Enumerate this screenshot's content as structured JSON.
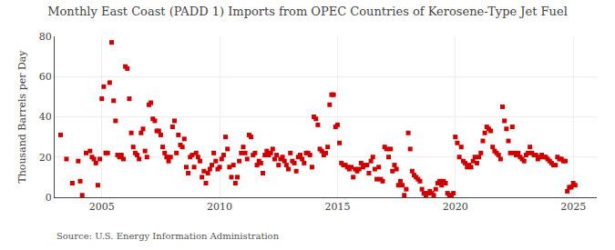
{
  "chart_data": {
    "type": "scatter",
    "title": "Monthly East Coast (PADD 1) Imports from OPEC Countries of Kerosene-Type Jet Fuel",
    "ylabel": "Thousand Barrels per Day",
    "annotations": [
      "Source: U.S. Energy Information Administration"
    ],
    "color": "#cc0000",
    "marker": "square",
    "grid": true,
    "ylim": [
      0,
      80
    ],
    "yticks": [
      0,
      20,
      40,
      60,
      80
    ],
    "xlim": [
      2003.0,
      2026.0
    ],
    "xticks": [
      2005,
      2010,
      2015,
      2020,
      2025
    ],
    "x": [
      2003.25,
      2003.5,
      2003.75,
      2004.0,
      2004.083,
      2004.167,
      2004.333,
      2004.5,
      2004.583,
      2004.667,
      2004.75,
      2004.833,
      2004.917,
      2005.0,
      2005.083,
      2005.167,
      2005.25,
      2005.333,
      2005.417,
      2005.5,
      2005.583,
      2005.667,
      2005.75,
      2005.833,
      2005.917,
      2006.0,
      2006.083,
      2006.167,
      2006.25,
      2006.333,
      2006.417,
      2006.5,
      2006.583,
      2006.667,
      2006.75,
      2006.833,
      2006.917,
      2007.0,
      2007.083,
      2007.167,
      2007.25,
      2007.333,
      2007.417,
      2007.5,
      2007.583,
      2007.667,
      2007.75,
      2007.833,
      2007.917,
      2008.0,
      2008.083,
      2008.167,
      2008.25,
      2008.333,
      2008.417,
      2008.5,
      2008.583,
      2008.667,
      2008.75,
      2008.833,
      2008.917,
      2009.0,
      2009.083,
      2009.167,
      2009.25,
      2009.333,
      2009.417,
      2009.5,
      2009.583,
      2009.667,
      2009.75,
      2009.833,
      2009.917,
      2010.0,
      2010.083,
      2010.167,
      2010.25,
      2010.333,
      2010.417,
      2010.5,
      2010.583,
      2010.667,
      2010.75,
      2010.833,
      2010.917,
      2011.0,
      2011.083,
      2011.167,
      2011.25,
      2011.333,
      2011.417,
      2011.5,
      2011.583,
      2011.667,
      2011.75,
      2011.833,
      2011.917,
      2012.0,
      2012.083,
      2012.167,
      2012.25,
      2012.333,
      2012.417,
      2012.5,
      2012.583,
      2012.667,
      2012.75,
      2012.833,
      2012.917,
      2013.0,
      2013.083,
      2013.167,
      2013.25,
      2013.333,
      2013.417,
      2013.5,
      2013.583,
      2013.667,
      2013.75,
      2013.833,
      2013.917,
      2014.0,
      2014.083,
      2014.167,
      2014.25,
      2014.333,
      2014.417,
      2014.5,
      2014.583,
      2014.667,
      2014.75,
      2014.833,
      2014.917,
      2015.0,
      2015.083,
      2015.167,
      2015.25,
      2015.333,
      2015.417,
      2015.5,
      2015.583,
      2015.667,
      2015.75,
      2015.833,
      2015.917,
      2016.0,
      2016.083,
      2016.167,
      2016.25,
      2016.333,
      2016.417,
      2016.5,
      2016.583,
      2016.667,
      2016.75,
      2016.833,
      2016.917,
      2017.0,
      2017.083,
      2017.167,
      2017.25,
      2017.333,
      2017.417,
      2017.5,
      2017.583,
      2017.667,
      2017.75,
      2017.833,
      2017.917,
      2018.0,
      2018.083,
      2018.167,
      2018.25,
      2018.333,
      2018.417,
      2018.5,
      2018.583,
      2018.667,
      2018.75,
      2018.833,
      2018.917,
      2019.0,
      2019.083,
      2019.167,
      2019.25,
      2019.333,
      2019.417,
      2019.5,
      2019.583,
      2019.667,
      2019.75,
      2019.833,
      2019.917,
      2020.0,
      2020.083,
      2020.167,
      2020.25,
      2020.333,
      2020.417,
      2020.5,
      2020.583,
      2020.667,
      2020.75,
      2020.833,
      2020.917,
      2021.0,
      2021.083,
      2021.167,
      2021.25,
      2021.333,
      2021.417,
      2021.5,
      2021.583,
      2021.667,
      2021.75,
      2021.833,
      2021.917,
      2022.0,
      2022.083,
      2022.167,
      2022.25,
      2022.333,
      2022.417,
      2022.5,
      2022.583,
      2022.667,
      2022.75,
      2022.833,
      2022.917,
      2023.0,
      2023.083,
      2023.167,
      2023.25,
      2023.333,
      2023.417,
      2023.5,
      2023.583,
      2023.667,
      2023.75,
      2023.833,
      2023.917,
      2024.0,
      2024.083,
      2024.167,
      2024.25,
      2024.333,
      2024.417,
      2024.5,
      2024.583,
      2024.667,
      2024.75,
      2024.833,
      2024.917,
      2025.0,
      2025.083
    ],
    "values": [
      31,
      19,
      7,
      18,
      8,
      1,
      22,
      23,
      20,
      19,
      17,
      6,
      19,
      49,
      55,
      22,
      22,
      57,
      77,
      48,
      38,
      21,
      20,
      21,
      19,
      65,
      64,
      49,
      32,
      25,
      22,
      21,
      19,
      32,
      34,
      23,
      20,
      46,
      47,
      39,
      38,
      33,
      33,
      31,
      25,
      22,
      20,
      18,
      20,
      35,
      38,
      22,
      31,
      26,
      25,
      29,
      15,
      12,
      20,
      21,
      15,
      22,
      20,
      18,
      10,
      13,
      7,
      12,
      14,
      16,
      22,
      18,
      14,
      15,
      19,
      21,
      30,
      24,
      15,
      10,
      16,
      7,
      10,
      18,
      22,
      25,
      22,
      19,
      31,
      30,
      21,
      22,
      16,
      18,
      17,
      12,
      21,
      23,
      21,
      22,
      24,
      19,
      21,
      16,
      19,
      20,
      18,
      16,
      14,
      22,
      18,
      17,
      13,
      20,
      21,
      19,
      17,
      22,
      22,
      21,
      15,
      40,
      39,
      36,
      24,
      23,
      21,
      22,
      25,
      46,
      51,
      51,
      35,
      36,
      27,
      17,
      16,
      16,
      15,
      14,
      15,
      10,
      14,
      13,
      14,
      17,
      15,
      16,
      16,
      12,
      18,
      20,
      14,
      9,
      15,
      9,
      8,
      25,
      24,
      20,
      24,
      13,
      16,
      14,
      6,
      8,
      6,
      1,
      4,
      32,
      24,
      13,
      11,
      10,
      9,
      8,
      4,
      2,
      1,
      2,
      3,
      2,
      1,
      4,
      7,
      8,
      6,
      8,
      7,
      2,
      1,
      1,
      2,
      30,
      27,
      20,
      25,
      18,
      17,
      15,
      16,
      15,
      18,
      20,
      17,
      20,
      22,
      28,
      32,
      35,
      34,
      33,
      25,
      23,
      22,
      21,
      19,
      45,
      38,
      34,
      28,
      22,
      35,
      22,
      21,
      22,
      20,
      19,
      18,
      21,
      22,
      25,
      22,
      21,
      21,
      19,
      20,
      21,
      20,
      20,
      19,
      18,
      17,
      16,
      16,
      20,
      19,
      19,
      18,
      18,
      3,
      5,
      5,
      7,
      6
    ]
  }
}
